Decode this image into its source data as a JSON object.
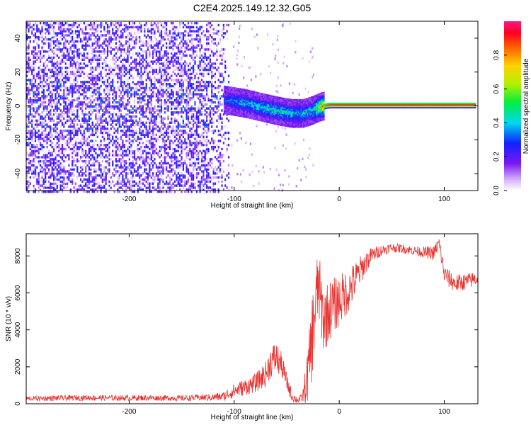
{
  "title": "C2E4.2025.149.12.32.G05",
  "colors": {
    "snr_line": "#e8322f",
    "track": "#ff2a2a",
    "noise_dark": "#6a16e8",
    "noise_light": "#cda8f5",
    "axis": "#000000"
  },
  "chart_data": [
    {
      "type": "heatmap",
      "xlabel": "Height of straight line (km)",
      "ylabel": "Frequency (Hz)",
      "xlim": [
        -298,
        132
      ],
      "ylim": [
        -50,
        50
      ],
      "xticks": [
        -200,
        -100,
        0,
        100
      ],
      "yticks": [
        -40,
        -20,
        0,
        20,
        40
      ],
      "colorbar": {
        "label": "Normalized spectral amplitude",
        "range": [
          0.0,
          1.0
        ],
        "ticks": [
          0.0,
          0.2,
          0.4,
          0.6,
          0.8
        ],
        "tick_labels": [
          "0.0",
          "0.2",
          "0.4",
          "0.6",
          "0.8"
        ],
        "colormap": "rainbow (white→purple→blue→cyan→green→yellow→orange→red→magenta)"
      },
      "track": {
        "description": "signal line near 0 Hz",
        "x": [
          -110,
          -90,
          -70,
          -55,
          -45,
          -35,
          -25,
          -18,
          -10,
          0,
          20,
          60,
          100,
          130
        ],
        "y": [
          4,
          2,
          -1,
          -3,
          -4,
          -4,
          -2,
          0,
          1,
          1,
          1,
          1,
          1,
          1
        ],
        "amplitude": [
          0.35,
          0.45,
          0.5,
          0.5,
          0.45,
          0.45,
          0.5,
          0.8,
          0.95,
          0.97,
          0.97,
          0.97,
          0.97,
          0.97
        ]
      },
      "noise_region": {
        "x_range": [
          -298,
          -105
        ],
        "y_range": [
          -50,
          50
        ],
        "amplitude_range": [
          0.0,
          0.3
        ]
      }
    },
    {
      "type": "line",
      "xlabel": "Height of straight line (km)",
      "ylabel": "SNR (10 * v/v)",
      "xlim": [
        -298,
        132
      ],
      "ylim": [
        0,
        9200
      ],
      "xticks": [
        -200,
        -100,
        0,
        100
      ],
      "yticks": [
        0,
        2000,
        4000,
        6000,
        8000
      ],
      "series": [
        {
          "x": [
            -298,
            -270,
            -240,
            -210,
            -180,
            -150,
            -120,
            -110,
            -100,
            -90,
            -80,
            -70,
            -65,
            -60,
            -55,
            -50,
            -45,
            -40,
            -35,
            -30,
            -25,
            -20,
            -15,
            -10,
            0,
            10,
            20,
            30,
            40,
            50,
            60,
            70,
            80,
            90,
            95,
            100,
            110,
            120,
            132
          ],
          "y": [
            280,
            300,
            330,
            310,
            320,
            300,
            350,
            400,
            700,
            900,
            1100,
            1600,
            2300,
            2500,
            2100,
            1200,
            400,
            200,
            300,
            1500,
            4000,
            6500,
            4500,
            5000,
            5600,
            6200,
            7200,
            8000,
            8300,
            8450,
            8400,
            8300,
            8200,
            8150,
            8700,
            7000,
            6500,
            6600,
            6800
          ],
          "noise_amplitude": [
            120,
            150,
            150,
            150,
            150,
            150,
            200,
            250,
            400,
            450,
            500,
            700,
            900,
            900,
            700,
            500,
            300,
            200,
            250,
            1500,
            2500,
            2000,
            1800,
            1700,
            1400,
            1200,
            800,
            450,
            300,
            250,
            250,
            250,
            300,
            400,
            400,
            500,
            500,
            450,
            400
          ]
        }
      ]
    }
  ]
}
